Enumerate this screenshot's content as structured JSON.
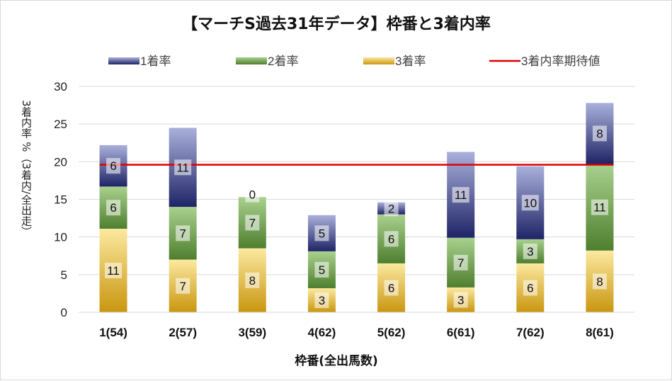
{
  "chart_data": {
    "type": "bar",
    "stacked": true,
    "title": "【マーチS過去31年データ】枠番と3着内率",
    "xlabel": "枠番(全出馬数)",
    "ylabel": "3着内率 %（3着内/全出走）",
    "ylim": [
      0,
      30
    ],
    "yticks": [
      0,
      5,
      10,
      15,
      20,
      25,
      30
    ],
    "grid": true,
    "legend_position": "top",
    "categories": [
      "1(54)",
      "2(57)",
      "3(59)",
      "4(62)",
      "5(62)",
      "6(61)",
      "7(62)",
      "8(61)"
    ],
    "series": [
      {
        "name": "3着率",
        "values": [
          11.1,
          7.0,
          8.5,
          3.2,
          6.5,
          3.3,
          6.5,
          8.2
        ],
        "labels": [
          "11",
          "7",
          "8",
          "3",
          "6",
          "3",
          "6",
          "8"
        ],
        "colors": [
          "#fce9a0",
          "#c9960f"
        ]
      },
      {
        "name": "2着率",
        "values": [
          5.6,
          7.0,
          6.8,
          4.9,
          6.5,
          6.6,
          3.2,
          11.5
        ],
        "labels": [
          "6",
          "7",
          "7",
          "5",
          "6",
          "7",
          "3",
          "11"
        ],
        "colors": [
          "#a9d18e",
          "#4e7f2e"
        ]
      },
      {
        "name": "1着率",
        "values": [
          5.5,
          10.5,
          0.0,
          4.8,
          1.6,
          11.4,
          9.7,
          8.1
        ],
        "labels": [
          "6",
          "11",
          "0",
          "5",
          "2",
          "11",
          "10",
          "8"
        ],
        "colors": [
          "#aab0db",
          "#1f2466"
        ]
      }
    ],
    "line": {
      "name": "3着内率期待値",
      "value": 19.6,
      "color": "#e00000"
    }
  }
}
